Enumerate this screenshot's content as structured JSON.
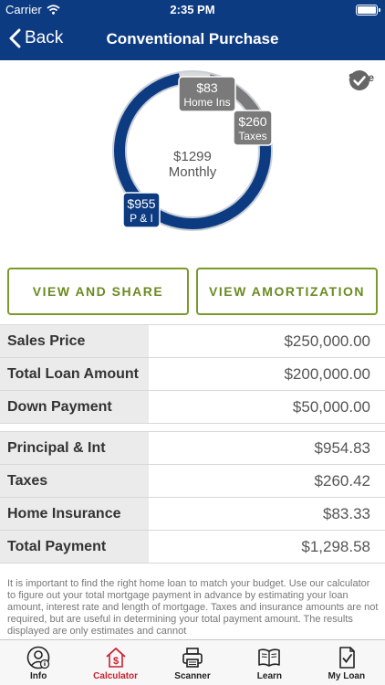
{
  "status_bar": {
    "carrier": "Carrier",
    "time": "2:35 PM"
  },
  "nav": {
    "back_label": "Back",
    "title": "Conventional Purchase"
  },
  "save_label": "Save",
  "chart_data": {
    "type": "pie",
    "center_value": "$1299",
    "center_label": "Monthly",
    "slices": [
      {
        "label": "P & I",
        "value_label": "$955",
        "value": 954.83,
        "color": "#0d3b82"
      },
      {
        "label": "Taxes",
        "value_label": "$260",
        "value": 260.42,
        "color": "#7a7a7a"
      },
      {
        "label": "Home Ins",
        "value_label": "$83",
        "value": 83.33,
        "color": "#d9d9d9"
      }
    ]
  },
  "buttons": {
    "share": "VIEW AND SHARE",
    "amortization": "VIEW AMORTIZATION"
  },
  "table1": [
    {
      "label": "Sales Price",
      "value": "$250,000.00"
    },
    {
      "label": "Total Loan Amount",
      "value": "$200,000.00"
    },
    {
      "label": "Down Payment",
      "value": "$50,000.00"
    }
  ],
  "table2": [
    {
      "label": "Principal & Int",
      "value": "$954.83"
    },
    {
      "label": "Taxes",
      "value": "$260.42"
    },
    {
      "label": "Home Insurance",
      "value": "$83.33"
    },
    {
      "label": "Total Payment",
      "value": "$1,298.58"
    }
  ],
  "disclaimer": "It is important to find the right home loan to match your budget. Use our calculator to figure out your total mortgage payment in advance by estimating your loan amount, interest rate and length of mortgage. Taxes and insurance amounts are not required, but are useful in determining your total payment amount.  The results displayed are only estimates and cannot",
  "tabs": [
    {
      "label": "Info",
      "icon": "person-info-icon",
      "active": false
    },
    {
      "label": "Calculator",
      "icon": "house-dollar-icon",
      "active": true
    },
    {
      "label": "Scanner",
      "icon": "printer-icon",
      "active": false
    },
    {
      "label": "Learn",
      "icon": "book-icon",
      "active": false
    },
    {
      "label": "My Loan",
      "icon": "document-check-icon",
      "active": false
    }
  ],
  "colors": {
    "brand": "#0d3b82",
    "accent": "#7a9a2a",
    "active_tab": "#c8202f"
  }
}
